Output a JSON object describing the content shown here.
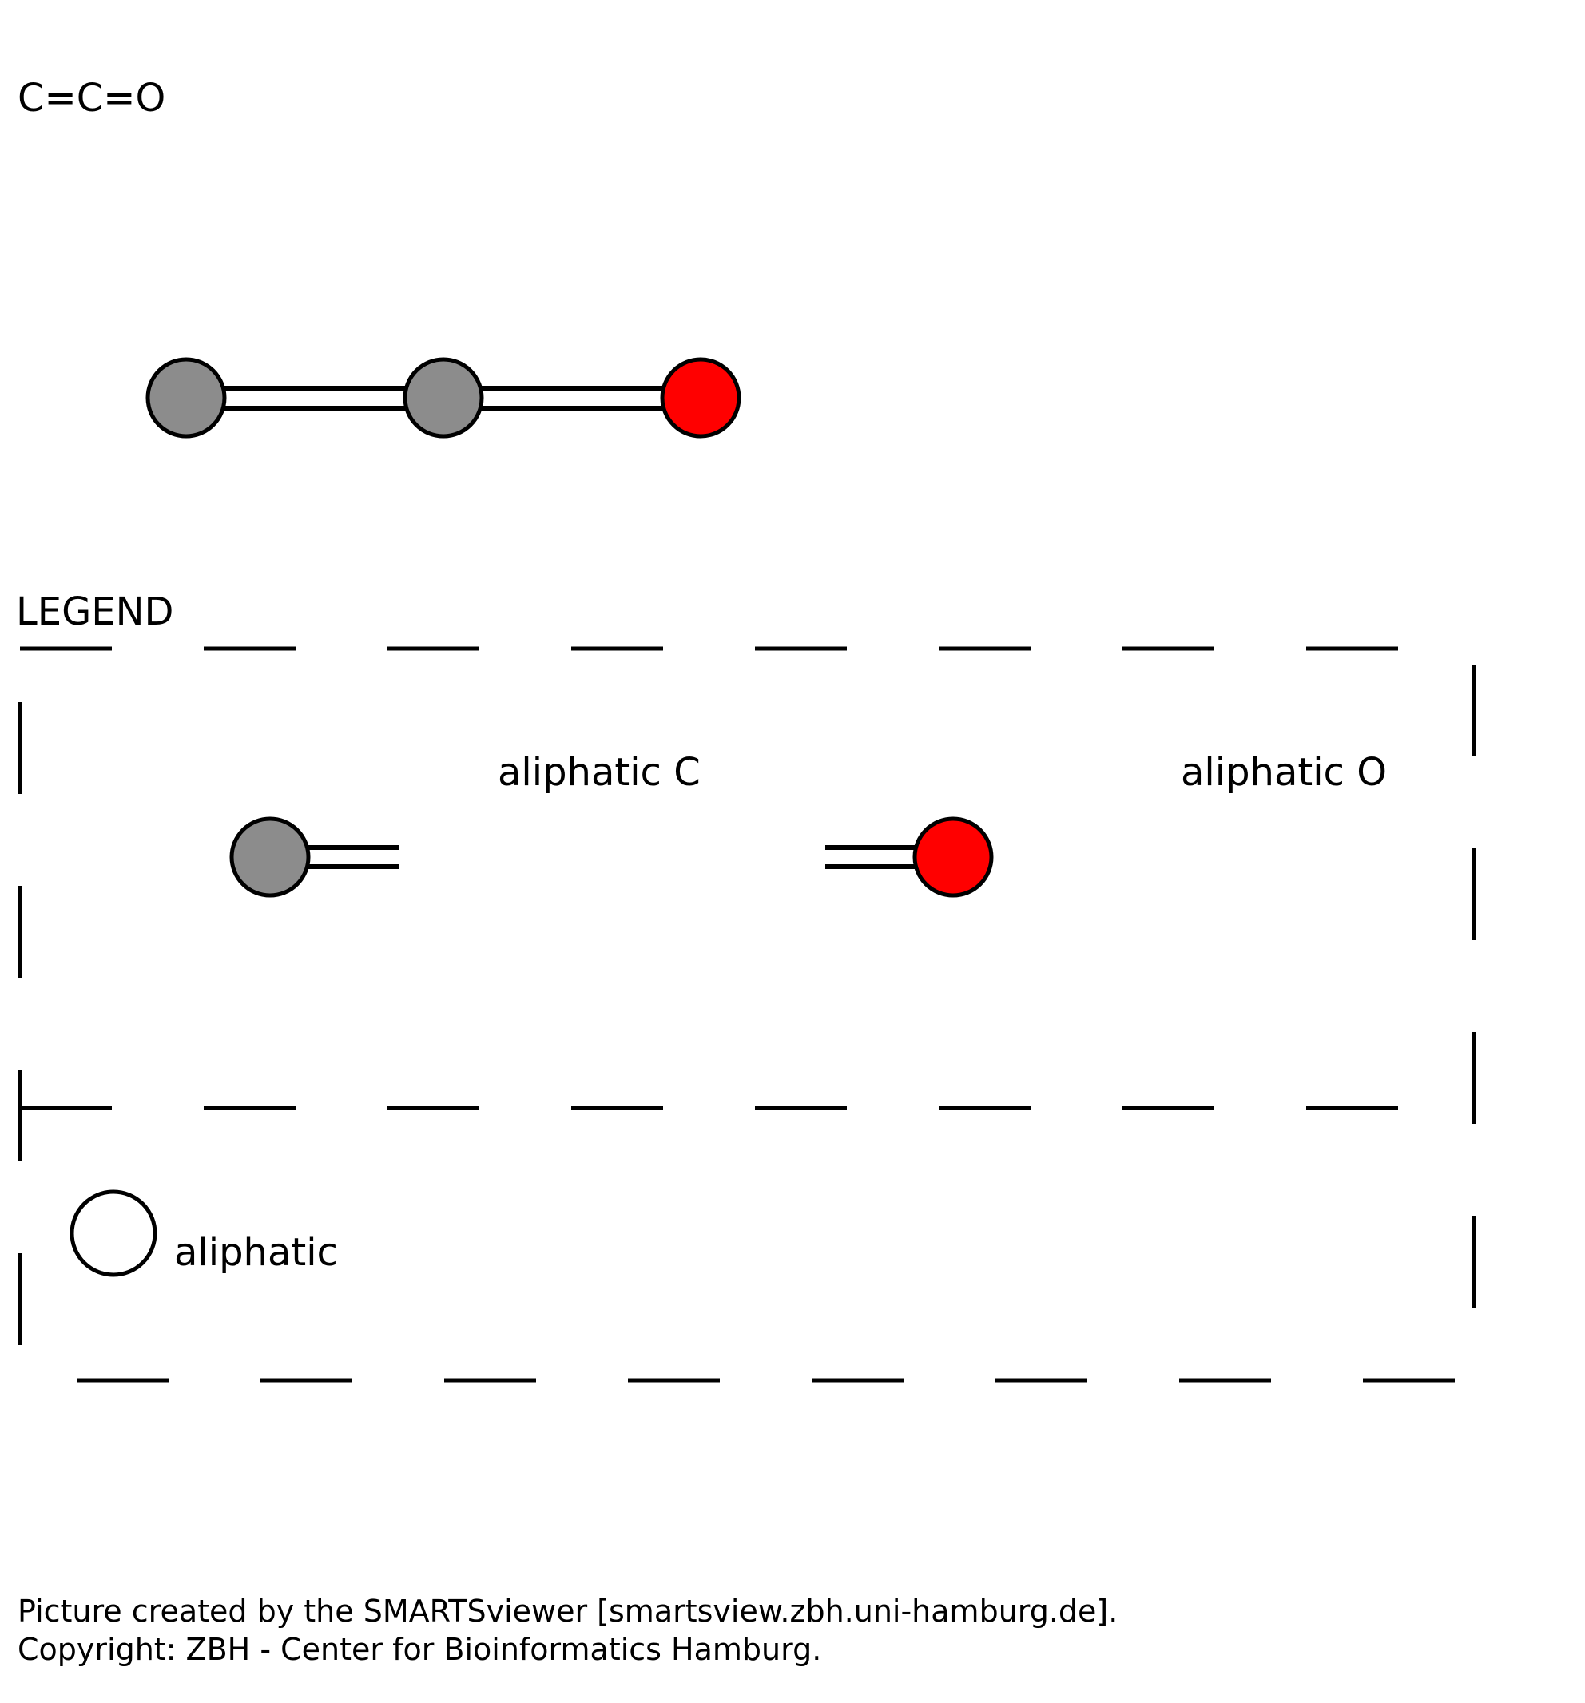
{
  "smiles": "C=C=O",
  "molecule": {
    "atoms": [
      {
        "element": "C",
        "color": "#8c8c8c"
      },
      {
        "element": "C",
        "color": "#8c8c8c"
      },
      {
        "element": "O",
        "color": "#ff0000"
      }
    ],
    "bonds": [
      {
        "from": 0,
        "to": 1,
        "order": "double"
      },
      {
        "from": 1,
        "to": 2,
        "order": "double"
      }
    ]
  },
  "legend": {
    "title": "LEGEND",
    "entries": [
      {
        "label": "aliphatic C",
        "color": "#8c8c8c"
      },
      {
        "label": "aliphatic O",
        "color": "#ff0000"
      }
    ],
    "ring_key": {
      "label": "aliphatic",
      "color": "#ffffff"
    }
  },
  "footer": {
    "line1": "Picture created by the SMARTSviewer [smartsview.zbh.uni-hamburg.de].",
    "line2": "Copyright: ZBH - Center for Bioinformatics Hamburg."
  }
}
